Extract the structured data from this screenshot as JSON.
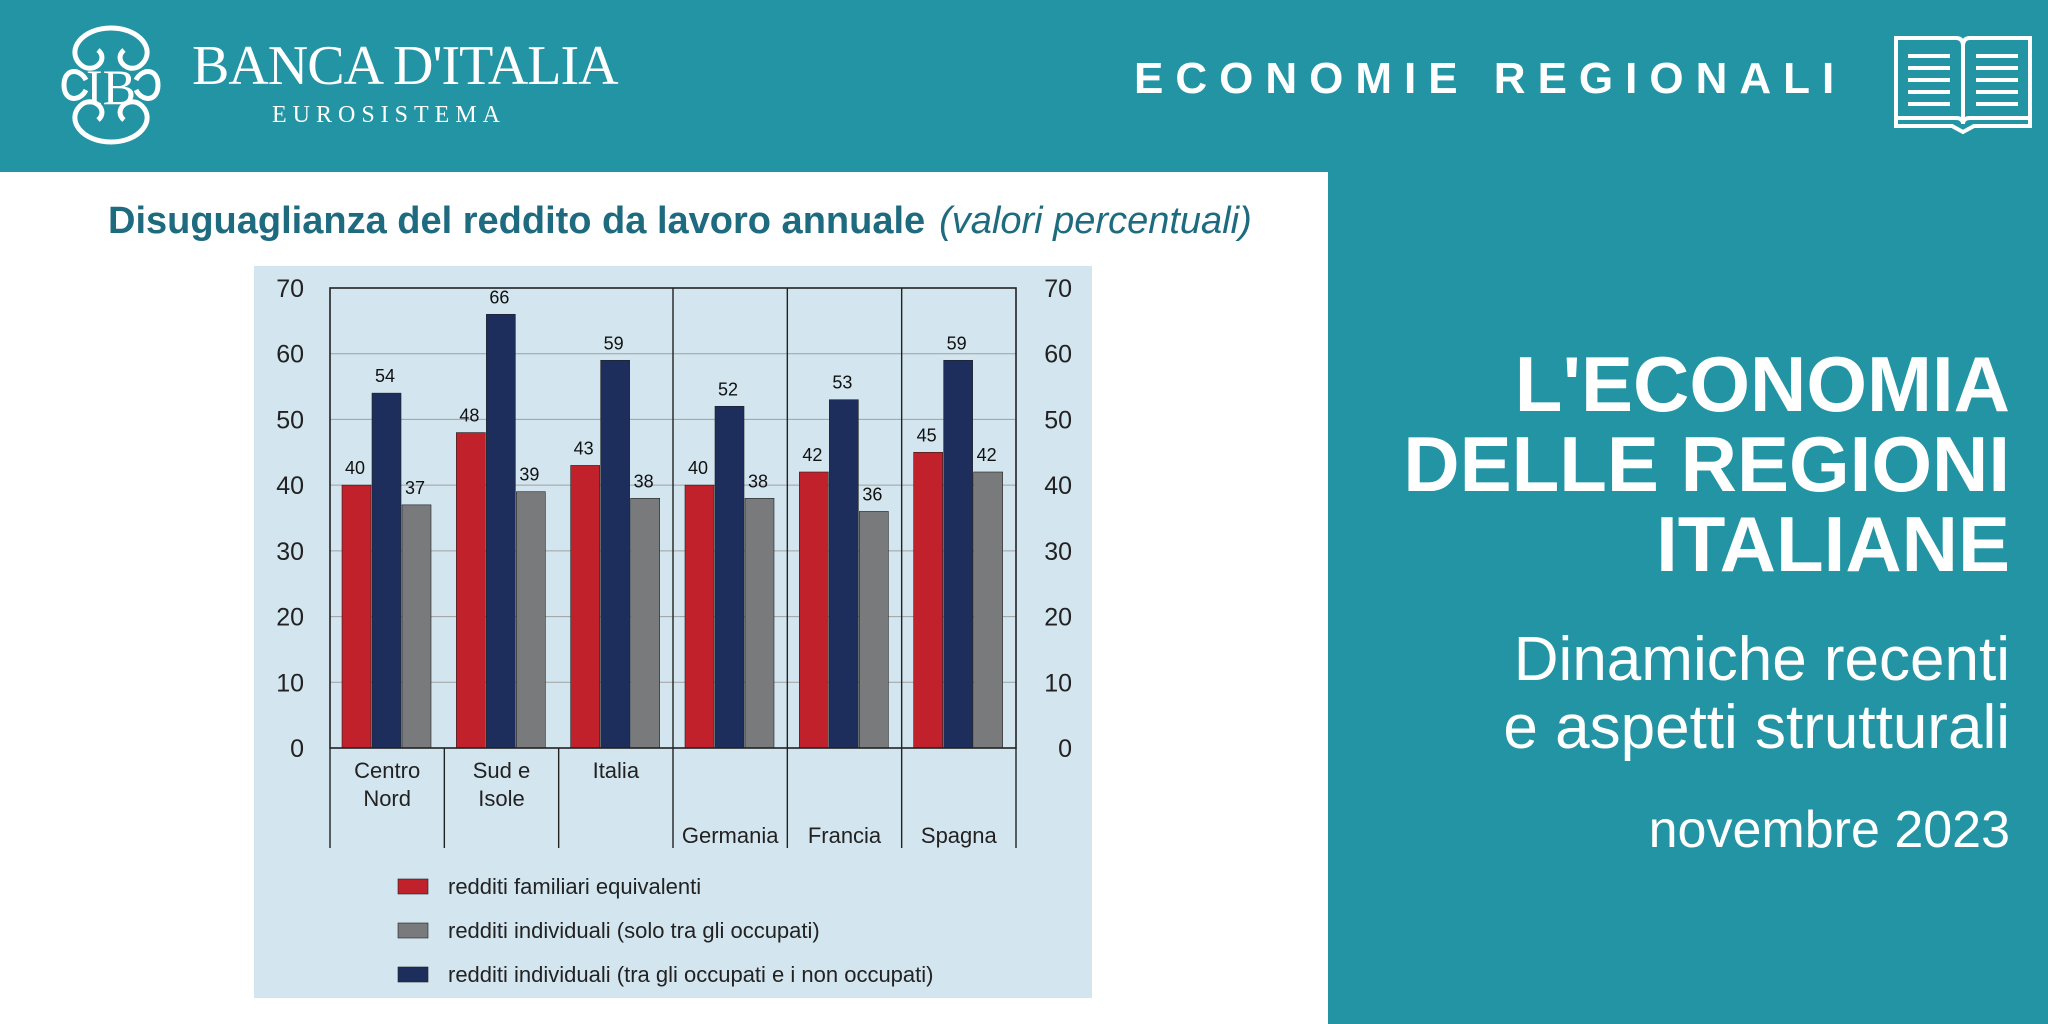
{
  "header": {
    "logo_name": "BANCA D'ITALIA",
    "logo_sub": "EUROSISTEMA",
    "series_title": "ECONOMIE REGIONALI"
  },
  "icons": {
    "logo": "bank-monogram-emblem",
    "book": "open-book-icon"
  },
  "colors": {
    "teal": "#2394a3",
    "red": "#c1212b",
    "navy": "#1d2d5c",
    "gray": "#787a7c",
    "chart_bg": "#d3e5ef"
  },
  "chart_data": {
    "type": "bar",
    "title": "Disuguaglianza del reddito da lavoro annuale",
    "unit": "(valori percentuali)",
    "categories": [
      [
        "Centro",
        "Nord"
      ],
      [
        "Sud e",
        "Isole"
      ],
      [
        "Italia"
      ],
      [
        "Germania"
      ],
      [
        "Francia"
      ],
      [
        "Spagna"
      ]
    ],
    "series": [
      {
        "name": "redditi familiari equivalenti",
        "color": "#c1212b",
        "values": [
          40,
          48,
          43,
          40,
          42,
          45
        ]
      },
      {
        "name": "redditi individuali (tra gli occupati e i non occupati)",
        "color": "#1d2d5c",
        "values": [
          54,
          66,
          59,
          52,
          53,
          59
        ]
      },
      {
        "name": "redditi individuali (solo tra gli occupati)",
        "color": "#787a7c",
        "values": [
          37,
          39,
          38,
          38,
          36,
          42
        ]
      }
    ],
    "legend_order": [
      0,
      2,
      1
    ],
    "ylim": [
      0,
      70
    ],
    "yticks": [
      0,
      10,
      20,
      30,
      40,
      50,
      60,
      70
    ],
    "grid": true,
    "legend_position": "bottom"
  },
  "side": {
    "title_lines": [
      "L'ECONOMIA",
      "DELLE REGIONI",
      "ITALIANE"
    ],
    "subtitle_lines": [
      "Dinamiche recenti",
      "e aspetti strutturali"
    ],
    "date": "novembre 2023"
  }
}
